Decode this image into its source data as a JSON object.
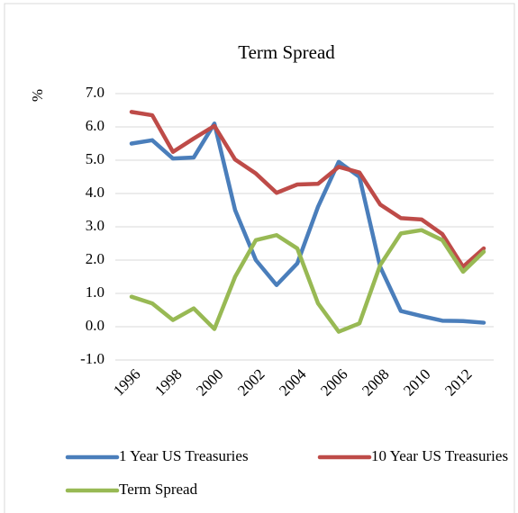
{
  "chart_data": {
    "type": "line",
    "title": "Term Spread",
    "y_label": "%",
    "categories": [
      "1996",
      null,
      "1998",
      null,
      "2000",
      null,
      "2002",
      null,
      "2004",
      null,
      "2006",
      null,
      "2008",
      null,
      "2010",
      null,
      "2012",
      null
    ],
    "series": [
      {
        "name": "1 Year US Treasuries",
        "color": "#4a7ebb",
        "values": [
          5.5,
          5.6,
          5.05,
          5.08,
          6.1,
          3.5,
          2.0,
          1.25,
          1.9,
          3.6,
          4.95,
          4.5,
          1.8,
          0.47,
          0.32,
          0.18,
          0.17,
          0.12
        ]
      },
      {
        "name": "10 Year US Treasuries",
        "color": "#be4b48",
        "values": [
          6.45,
          6.35,
          5.25,
          5.65,
          6.03,
          5.02,
          4.6,
          4.02,
          4.27,
          4.29,
          4.8,
          4.63,
          3.67,
          3.26,
          3.22,
          2.78,
          1.8,
          2.35
        ]
      },
      {
        "name": "Term Spread",
        "color": "#98b954",
        "values": [
          0.9,
          0.7,
          0.2,
          0.55,
          -0.07,
          1.5,
          2.6,
          2.75,
          2.35,
          0.7,
          -0.15,
          0.1,
          1.85,
          2.8,
          2.9,
          2.6,
          1.65,
          2.25
        ]
      }
    ],
    "ylim": [
      -1,
      7
    ],
    "yticks": [
      {
        "value": -1,
        "label": "-1.0"
      },
      {
        "value": 0,
        "label": "0.0"
      },
      {
        "value": 1,
        "label": "1.0"
      },
      {
        "value": 2,
        "label": "2.0"
      },
      {
        "value": 3,
        "label": "3.0"
      },
      {
        "value": 4,
        "label": "4.0"
      },
      {
        "value": 5,
        "label": "5.0"
      },
      {
        "value": 6,
        "label": "6.0"
      },
      {
        "value": 7,
        "label": "7.0"
      }
    ],
    "grid": true,
    "legend": "bottom"
  }
}
